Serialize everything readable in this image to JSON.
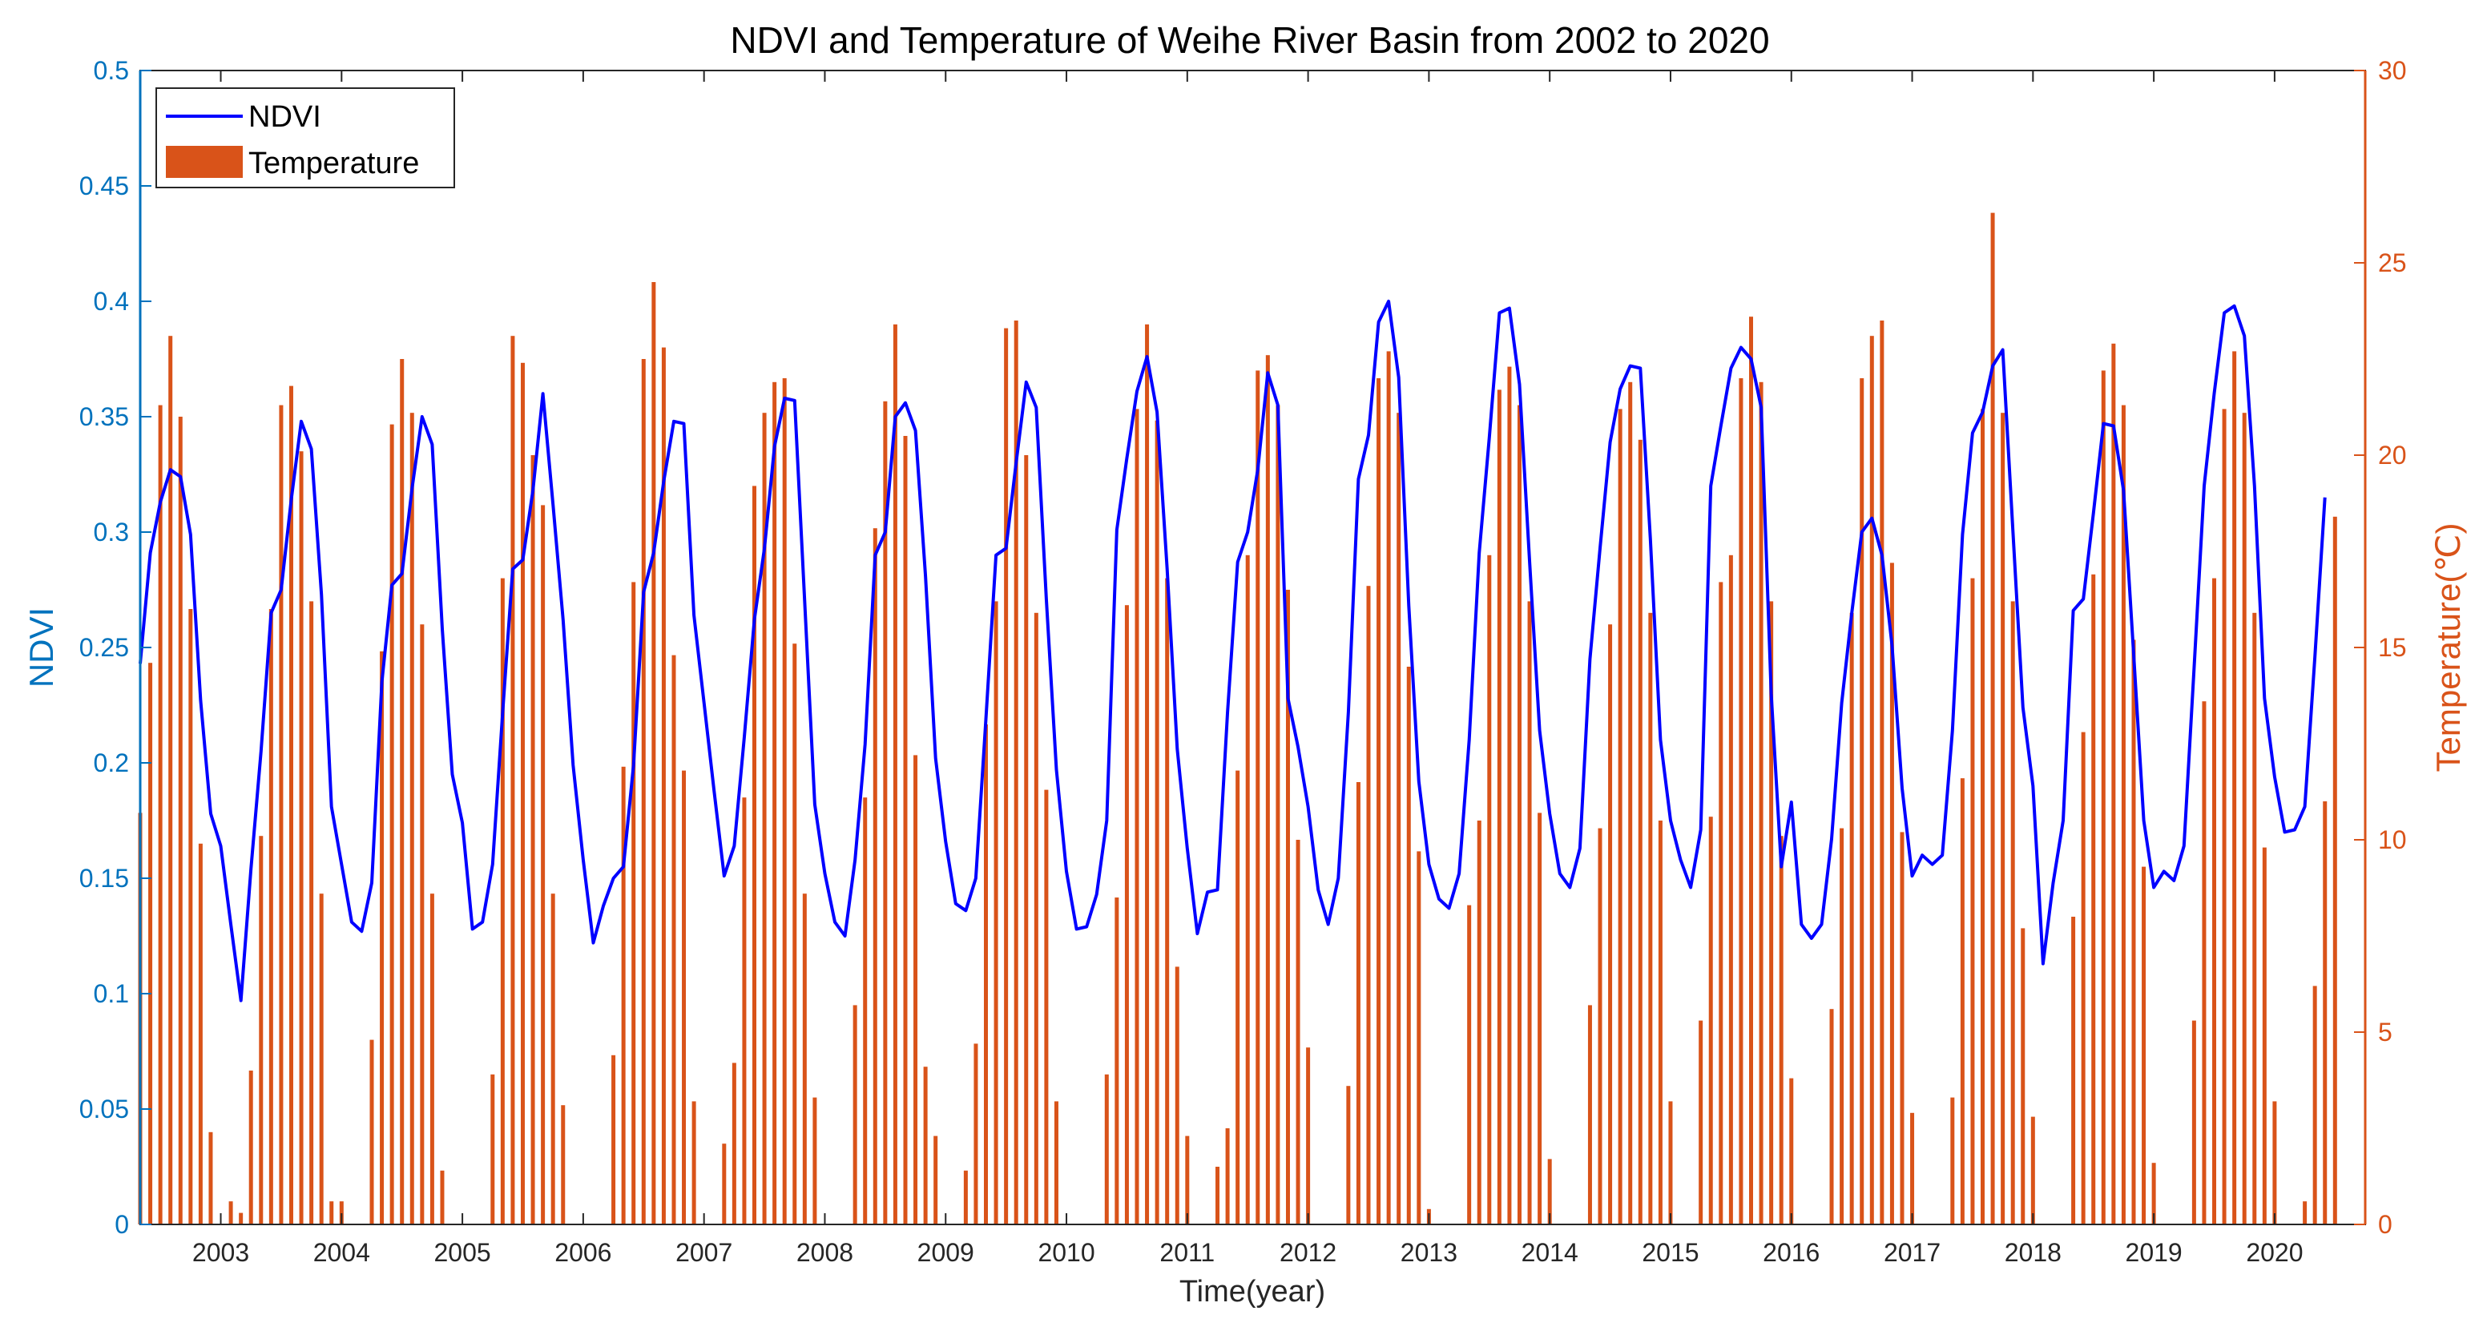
{
  "chart_data": {
    "type": "bar+line",
    "title": "NDVI and Temperature of Weihe River Basin from 2002 to 2020",
    "xlabel": "Time(year)",
    "ylabel_left": "NDVI",
    "ylabel_right": "Temperature(℃)",
    "ylim_left": [
      0,
      0.5
    ],
    "ylim_right": [
      0,
      30
    ],
    "xlim_months": [
      4,
      225
    ],
    "x_unit": "months since Jan 2002",
    "left_ticks": [
      "0",
      "0.05",
      "0.1",
      "0.15",
      "0.2",
      "0.25",
      "0.3",
      "0.35",
      "0.4",
      "0.45",
      "0.5"
    ],
    "right_ticks": [
      "0",
      "5",
      "10",
      "15",
      "20",
      "25",
      "30"
    ],
    "year_ticks": [
      "2003",
      "2004",
      "2005",
      "2006",
      "2007",
      "2008",
      "2009",
      "2010",
      "2011",
      "2012",
      "2013",
      "2014",
      "2015",
      "2016",
      "2017",
      "2018",
      "2019",
      "2020"
    ],
    "grid": false,
    "legend_position": "top-left",
    "colors": {
      "ndvi": "#0000FF",
      "temperature": "#D95319",
      "left_axis": "#0072BD",
      "right_axis": "#D95319",
      "frame": "#262626"
    },
    "series": [
      {
        "name": "NDVI",
        "kind": "line",
        "axis": "left",
        "start_month": 4,
        "values": [
          0.243,
          0.291,
          0.313,
          0.327,
          0.324,
          0.299,
          0.227,
          0.178,
          0.164,
          0.13,
          0.097,
          0.154,
          0.205,
          0.265,
          0.275,
          0.314,
          0.348,
          0.336,
          0.273,
          0.181,
          0.156,
          0.131,
          0.127,
          0.148,
          0.235,
          0.277,
          0.282,
          0.319,
          0.35,
          0.338,
          0.258,
          0.195,
          0.174,
          0.128,
          0.131,
          0.156,
          0.222,
          0.284,
          0.288,
          0.318,
          0.36,
          0.312,
          0.262,
          0.199,
          0.158,
          0.122,
          0.138,
          0.15,
          0.155,
          0.199,
          0.274,
          0.291,
          0.322,
          0.348,
          0.347,
          0.264,
          0.226,
          0.188,
          0.151,
          0.164,
          0.211,
          0.262,
          0.293,
          0.337,
          0.358,
          0.357,
          0.27,
          0.182,
          0.152,
          0.131,
          0.125,
          0.158,
          0.208,
          0.29,
          0.3,
          0.35,
          0.356,
          0.344,
          0.281,
          0.202,
          0.166,
          0.139,
          0.136,
          0.15,
          0.219,
          0.29,
          0.293,
          0.33,
          0.365,
          0.354,
          0.271,
          0.197,
          0.153,
          0.128,
          0.129,
          0.143,
          0.175,
          0.301,
          0.332,
          0.361,
          0.376,
          0.352,
          0.284,
          0.206,
          0.163,
          0.126,
          0.144,
          0.145,
          0.222,
          0.287,
          0.3,
          0.327,
          0.369,
          0.355,
          0.228,
          0.207,
          0.181,
          0.145,
          0.13,
          0.15,
          0.222,
          0.323,
          0.342,
          0.391,
          0.4,
          0.367,
          0.268,
          0.192,
          0.156,
          0.141,
          0.137,
          0.152,
          0.21,
          0.291,
          0.341,
          0.395,
          0.397,
          0.364,
          0.287,
          0.214,
          0.178,
          0.152,
          0.146,
          0.163,
          0.245,
          0.293,
          0.339,
          0.362,
          0.372,
          0.371,
          0.297,
          0.21,
          0.175,
          0.158,
          0.146,
          0.171,
          0.32,
          0.346,
          0.371,
          0.38,
          0.375,
          0.354,
          0.23,
          0.155,
          0.183,
          0.13,
          0.124,
          0.13,
          0.167,
          0.226,
          0.265,
          0.3,
          0.306,
          0.29,
          0.251,
          0.189,
          0.151,
          0.16,
          0.156,
          0.16,
          0.214,
          0.299,
          0.343,
          0.352,
          0.372,
          0.379,
          0.301,
          0.224,
          0.19,
          0.113,
          0.148,
          0.175,
          0.266,
          0.271,
          0.308,
          0.347,
          0.346,
          0.318,
          0.247,
          0.175,
          0.146,
          0.153,
          0.149,
          0.164,
          0.241,
          0.32,
          0.36,
          0.395,
          0.398,
          0.385,
          0.32,
          0.228,
          0.194,
          0.17,
          0.171,
          0.181,
          0.246,
          0.315
        ]
      },
      {
        "name": "Temperature",
        "kind": "bar",
        "axis": "right",
        "start_month": 4,
        "values": [
          10.7,
          14.6,
          21.3,
          23.1,
          21.0,
          16.0,
          9.9,
          2.4,
          0.0,
          0.6,
          0.3,
          4.0,
          10.1,
          16.0,
          21.3,
          21.8,
          20.1,
          16.2,
          8.6,
          0.6,
          0.6,
          0.0,
          0.0,
          4.8,
          14.9,
          20.8,
          22.5,
          21.1,
          15.6,
          8.6,
          1.4,
          0.0,
          0.0,
          0.0,
          0.0,
          3.9,
          16.8,
          23.1,
          22.4,
          20.0,
          18.7,
          8.6,
          3.1,
          0.0,
          0.0,
          0.0,
          0.0,
          4.4,
          11.9,
          16.7,
          22.5,
          24.5,
          22.8,
          14.8,
          11.8,
          3.2,
          0.0,
          0.0,
          2.1,
          4.2,
          11.1,
          19.2,
          21.1,
          21.9,
          22.0,
          15.1,
          8.6,
          3.3,
          0.0,
          0.0,
          0.0,
          5.7,
          11.1,
          18.1,
          21.4,
          23.4,
          20.5,
          12.2,
          4.1,
          2.3,
          0.0,
          0.0,
          1.4,
          4.7,
          13.0,
          16.2,
          23.3,
          23.5,
          20.0,
          15.9,
          11.3,
          3.2,
          0.0,
          0.0,
          0.0,
          0.0,
          3.9,
          8.5,
          16.1,
          21.2,
          23.4,
          20.9,
          16.8,
          6.7,
          2.3,
          0.0,
          0.0,
          1.5,
          2.5,
          11.8,
          17.4,
          22.2,
          22.6,
          21.3,
          16.5,
          10.0,
          4.6,
          0.0,
          0.0,
          0.0,
          3.6,
          11.5,
          16.6,
          22.0,
          22.7,
          21.1,
          14.5,
          9.7,
          0.4,
          0.0,
          0.0,
          0.0,
          8.3,
          10.5,
          17.4,
          21.7,
          22.3,
          21.3,
          16.2,
          10.7,
          1.7,
          0.0,
          0.0,
          0.0,
          5.7,
          10.3,
          15.6,
          21.2,
          21.9,
          20.4,
          15.9,
          10.5,
          3.2,
          0.0,
          0.0,
          5.3,
          10.6,
          16.7,
          17.4,
          22.0,
          23.6,
          21.9,
          16.2,
          10.1,
          3.8,
          0.0,
          0.0,
          0.0,
          5.6,
          10.3,
          15.9,
          22.0,
          23.1,
          23.5,
          17.2,
          10.2,
          2.9,
          0.0,
          0.0,
          0.0,
          3.3,
          11.6,
          16.8,
          21.2,
          26.3,
          21.1,
          16.2,
          7.7,
          2.8,
          0.0,
          0.0,
          0.0,
          8.0,
          12.8,
          16.9,
          22.2,
          22.9,
          21.3,
          15.2,
          9.3,
          1.6,
          0.0,
          0.0,
          0.0,
          5.3,
          13.6,
          16.8,
          21.2,
          22.7,
          21.1,
          15.9,
          9.8,
          3.2,
          0.0,
          0.0,
          0.6,
          6.2,
          11.0,
          18.4
        ]
      }
    ]
  }
}
